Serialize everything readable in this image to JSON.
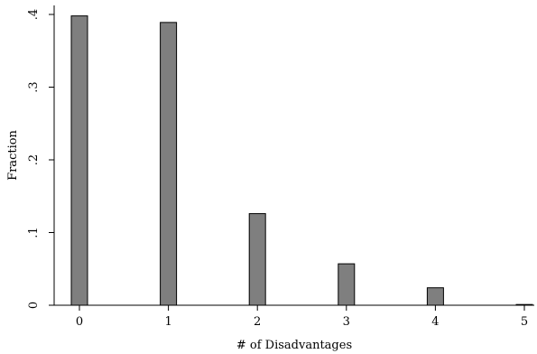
{
  "chart_data": {
    "type": "bar",
    "categories": [
      "0",
      "1",
      "2",
      "3",
      "4",
      "5"
    ],
    "values": [
      0.398,
      0.389,
      0.126,
      0.057,
      0.024,
      0.001
    ],
    "xlabel": "# of Disadvantages",
    "ylabel": "Fraction",
    "ylim": [
      0,
      0.4
    ],
    "yticks": [
      {
        "value": 0,
        "label": "0"
      },
      {
        "value": 0.1,
        "label": ".1"
      },
      {
        "value": 0.2,
        "label": ".2"
      },
      {
        "value": 0.3,
        "label": ".3"
      },
      {
        "value": 0.4,
        "label": ".4"
      }
    ],
    "grid": false,
    "bar_color": "#7f7f7f",
    "edge_color": "#000000"
  }
}
